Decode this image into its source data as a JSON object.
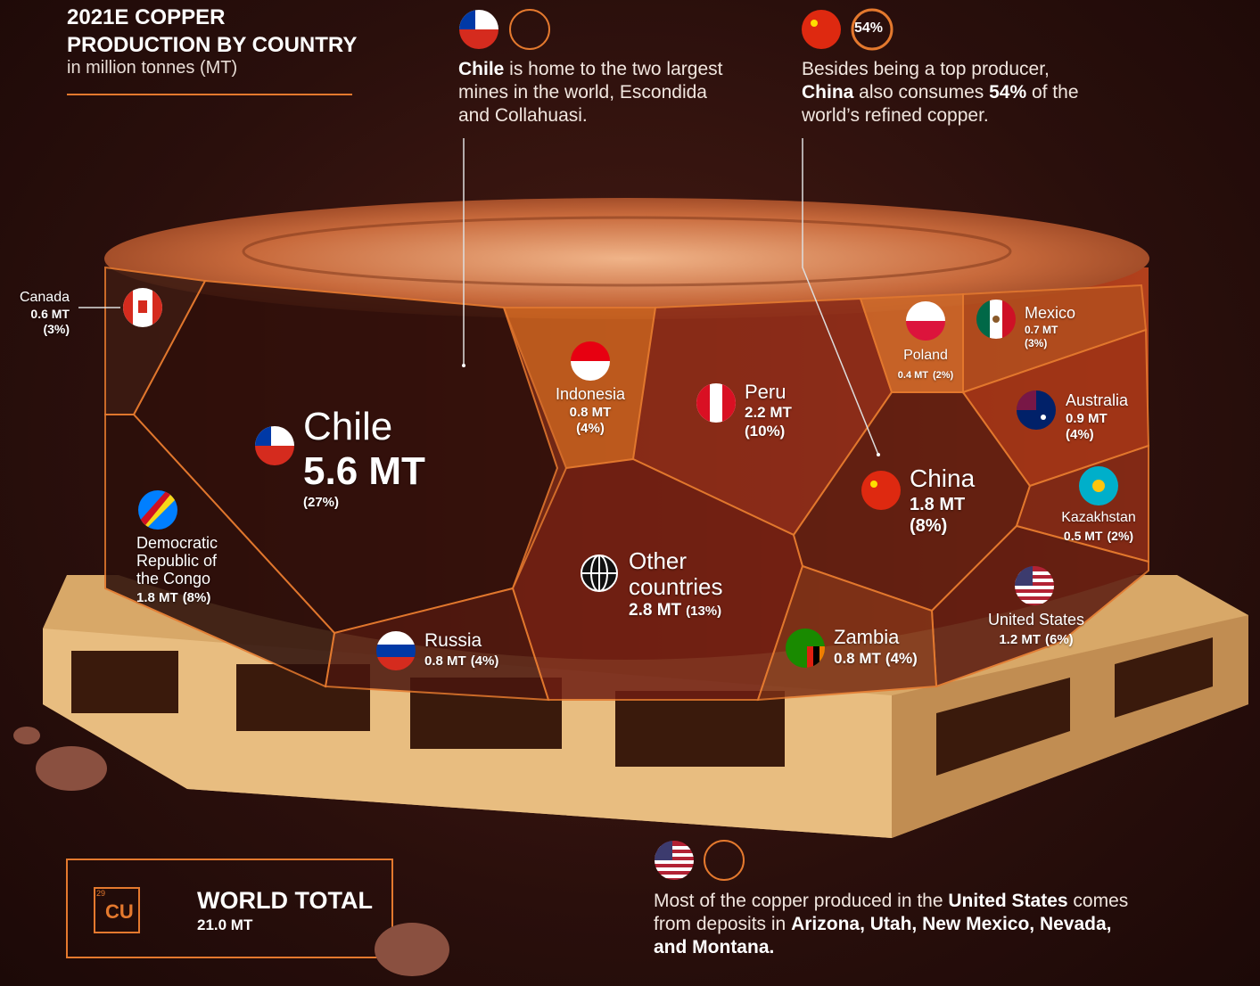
{
  "header": {
    "title_line1": "2021E COPPER",
    "title_line2": "PRODUCTION BY COUNTRY",
    "subtitle": "in million tonnes (MT)"
  },
  "countries": [
    {
      "name": "Chile",
      "value": "5.6 MT",
      "share": "(27%)"
    },
    {
      "name": "Peru",
      "value": "2.2 MT",
      "share": "(10%)"
    },
    {
      "name": "Other countries",
      "value": "2.8 MT",
      "share": "(13%)"
    },
    {
      "name": "Democratic Republic of the Congo",
      "value": "1.8 MT",
      "share": "(8%)"
    },
    {
      "name": "China",
      "value": "1.8 MT",
      "share": "(8%)"
    },
    {
      "name": "United States",
      "value": "1.2 MT",
      "share": "(6%)"
    },
    {
      "name": "Australia",
      "value": "0.9 MT",
      "share": "(4%)"
    },
    {
      "name": "Russia",
      "value": "0.8 MT",
      "share": "(4%)"
    },
    {
      "name": "Indonesia",
      "value": "0.8 MT",
      "share": "(4%)"
    },
    {
      "name": "Zambia",
      "value": "0.8 MT",
      "share": "(4%)"
    },
    {
      "name": "Mexico",
      "value": "0.7 MT",
      "share": "(3%)"
    },
    {
      "name": "Canada",
      "value": "0.6 MT",
      "share": "(3%)"
    },
    {
      "name": "Kazakhstan",
      "value": "0.5 MT",
      "share": "(2%)"
    },
    {
      "name": "Poland",
      "value": "0.4 MT",
      "share": "(2%)"
    }
  ],
  "callouts": [
    {
      "parts": [
        "Chile",
        " is home to the two largest mines in the world, Escondida and Collahuasi."
      ]
    },
    {
      "badge": "54%",
      "parts": [
        "Besides being a top producer, ",
        "China",
        " also consumes ",
        "54%",
        " of the world’s refined copper."
      ]
    },
    {
      "parts": [
        "Most of the copper produced in the ",
        "United States",
        " comes from deposits in ",
        "Arizona, Utah, New Mexico, Nevada, and Montana."
      ]
    }
  ],
  "world_total": {
    "atomic_number": "29",
    "symbol": "CU",
    "label": "WORLD TOTAL",
    "value": "21.0 MT"
  }
}
